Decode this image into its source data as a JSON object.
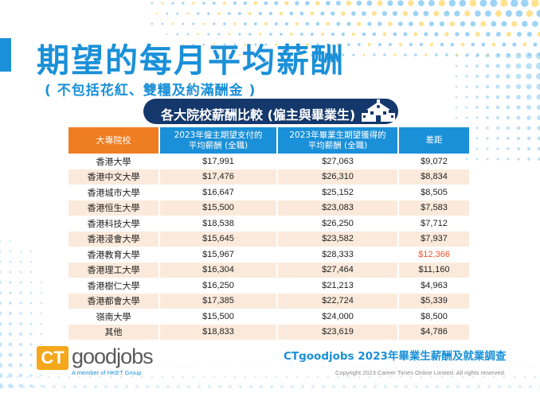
{
  "title": "期望的每月平均薪酬",
  "subtitle": "( 不包括花紅、雙糧及約滿酬金 )",
  "badge": "各大院校薪酬比較 (僱主與畢業生)",
  "colors": {
    "primary_blue": "#1a90d8",
    "navy": "#14386b",
    "orange": "#ef7d22",
    "row_alt": "#fbeadb",
    "highlight": "#e8562a"
  },
  "chart_data": {
    "type": "table",
    "headers": [
      "大專院校",
      "2023年僱主期望支付的\n平均薪酬 (全職)",
      "2023年畢業生期望獲得的\n平均薪酬 (全職)",
      "差距"
    ],
    "rows": [
      [
        "香港大學",
        "$17,991",
        "$27,063",
        "$9,072"
      ],
      [
        "香港中文大學",
        "$17,476",
        "$26,310",
        "$8,834"
      ],
      [
        "香港城市大學",
        "$16,647",
        "$25,152",
        "$8,505"
      ],
      [
        "香港恒生大學",
        "$15,500",
        "$23,083",
        "$7,583"
      ],
      [
        "香港科技大學",
        "$18,538",
        "$26,250",
        "$7,712"
      ],
      [
        "香港浸會大學",
        "$15,645",
        "$23,582",
        "$7,937"
      ],
      [
        "香港教育大學",
        "$15,967",
        "$28,333",
        "$12,366"
      ],
      [
        "香港理工大學",
        "$16,304",
        "$27,464",
        "$11,160"
      ],
      [
        "香港樹仁大學",
        "$16,250",
        "$21,213",
        "$4,963"
      ],
      [
        "香港都會大學",
        "$17,385",
        "$22,724",
        "$5,339"
      ],
      [
        "嶺南大學",
        "$15,500",
        "$24,000",
        "$8,500"
      ],
      [
        "其他",
        "$18,833",
        "$23,619",
        "$4,786"
      ]
    ],
    "highlight_row": 6
  },
  "logo": {
    "ct": "CT",
    "good": "goodjobs",
    "tagline": "A member of HKET Group"
  },
  "footer_title": "CTgoodjobs 2023年畢業生薪酬及就業調查",
  "copyright": "Copyright 2023 Career Times Online Limited. All rights reserved.",
  "icons": {
    "school": "school-building-icon"
  }
}
